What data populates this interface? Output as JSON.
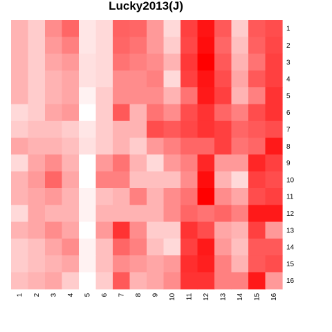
{
  "chart_data": {
    "type": "heatmap",
    "title": "Lucky2013(J)",
    "x_labels": [
      "1",
      "2",
      "3",
      "4",
      "5",
      "6",
      "7",
      "8",
      "9",
      "10",
      "11",
      "12",
      "13",
      "14",
      "15",
      "16"
    ],
    "y_labels": [
      "1",
      "2",
      "3",
      "4",
      "5",
      "6",
      "7",
      "8",
      "9",
      "10",
      "11",
      "12",
      "13",
      "14",
      "15",
      "16"
    ],
    "color_scale": {
      "low": "#ffffff",
      "high": "#ff0000"
    },
    "values": [
      [
        0.3,
        0.2,
        0.45,
        0.6,
        0.1,
        0.15,
        0.62,
        0.6,
        0.4,
        0.15,
        0.75,
        0.92,
        0.65,
        0.2,
        0.65,
        0.7
      ],
      [
        0.3,
        0.2,
        0.4,
        0.5,
        0.1,
        0.15,
        0.6,
        0.55,
        0.4,
        0.2,
        0.72,
        0.95,
        0.6,
        0.25,
        0.62,
        0.72
      ],
      [
        0.3,
        0.2,
        0.35,
        0.4,
        0.12,
        0.15,
        0.55,
        0.5,
        0.45,
        0.3,
        0.78,
        1.0,
        0.65,
        0.3,
        0.55,
        0.75
      ],
      [
        0.3,
        0.2,
        0.3,
        0.35,
        0.12,
        0.15,
        0.45,
        0.45,
        0.5,
        0.15,
        0.75,
        0.92,
        0.7,
        0.35,
        0.65,
        0.75
      ],
      [
        0.3,
        0.2,
        0.3,
        0.35,
        0.05,
        0.2,
        0.45,
        0.45,
        0.45,
        0.3,
        0.55,
        0.9,
        0.75,
        0.3,
        0.5,
        0.8
      ],
      [
        0.15,
        0.2,
        0.35,
        0.4,
        0.0,
        0.2,
        0.65,
        0.3,
        0.55,
        0.45,
        0.7,
        0.8,
        0.6,
        0.5,
        0.7,
        0.8
      ],
      [
        0.2,
        0.25,
        0.25,
        0.2,
        0.1,
        0.2,
        0.3,
        0.3,
        0.7,
        0.65,
        0.72,
        0.8,
        0.75,
        0.6,
        0.65,
        0.7
      ],
      [
        0.35,
        0.3,
        0.3,
        0.25,
        0.12,
        0.2,
        0.3,
        0.2,
        0.4,
        0.5,
        0.6,
        0.6,
        0.75,
        0.55,
        0.6,
        0.9
      ],
      [
        0.15,
        0.35,
        0.45,
        0.3,
        0.0,
        0.4,
        0.55,
        0.3,
        0.15,
        0.4,
        0.5,
        0.85,
        0.4,
        0.4,
        0.85,
        0.75
      ],
      [
        0.3,
        0.4,
        0.6,
        0.35,
        0.0,
        0.5,
        0.5,
        0.25,
        0.25,
        0.25,
        0.45,
        0.95,
        0.3,
        0.15,
        0.75,
        0.7
      ],
      [
        0.3,
        0.35,
        0.4,
        0.3,
        0.05,
        0.25,
        0.3,
        0.5,
        0.3,
        0.45,
        0.55,
        1.0,
        0.45,
        0.35,
        0.7,
        0.75
      ],
      [
        0.15,
        0.35,
        0.3,
        0.3,
        0.05,
        0.3,
        0.3,
        0.3,
        0.3,
        0.45,
        0.6,
        0.55,
        0.6,
        0.5,
        0.9,
        0.9
      ],
      [
        0.3,
        0.35,
        0.45,
        0.35,
        0.0,
        0.4,
        0.8,
        0.45,
        0.2,
        0.2,
        0.8,
        0.7,
        0.35,
        0.3,
        0.75,
        0.4
      ],
      [
        0.2,
        0.25,
        0.35,
        0.45,
        0.05,
        0.25,
        0.6,
        0.5,
        0.25,
        0.15,
        0.75,
        0.9,
        0.4,
        0.25,
        0.65,
        0.65
      ],
      [
        0.2,
        0.25,
        0.3,
        0.35,
        0.05,
        0.25,
        0.45,
        0.4,
        0.35,
        0.4,
        0.82,
        0.88,
        0.5,
        0.3,
        0.65,
        0.7
      ],
      [
        0.25,
        0.3,
        0.35,
        0.2,
        0.0,
        0.2,
        0.65,
        0.3,
        0.35,
        0.45,
        0.8,
        0.8,
        0.5,
        0.5,
        0.9,
        0.4
      ]
    ]
  }
}
